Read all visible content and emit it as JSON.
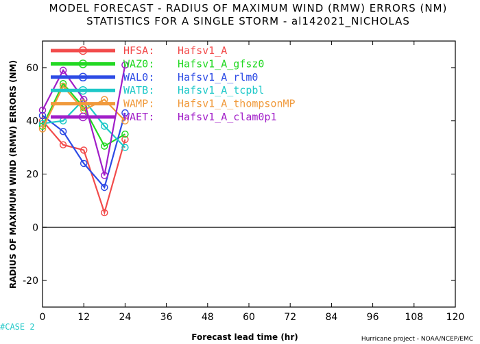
{
  "chart_data": {
    "type": "line",
    "title": "MODEL FORECAST - RADIUS OF MAXIMUM WIND (RMW) ERRORS (NM)",
    "subtitle": "STATISTICS FOR A SINGLE STORM - al142021_NICHOLAS",
    "xlabel": "Forecast lead time (hr)",
    "ylabel": "RADIUS OF MAXIMUM WIND (RMW) ERRORS (NM)",
    "xlim": [
      0,
      120
    ],
    "ylim": [
      -30,
      70
    ],
    "xticks": [
      0,
      12,
      24,
      36,
      48,
      60,
      72,
      84,
      96,
      108,
      120
    ],
    "yticks": [
      -20,
      0,
      20,
      40,
      60
    ],
    "grid": false,
    "legend_position": "top-left",
    "x": [
      0,
      6,
      12,
      18,
      24
    ],
    "series": [
      {
        "code": "HFSA",
        "name": "Hafsv1_A",
        "color": "#f24b4b",
        "values": [
          40,
          31,
          29,
          5.5,
          33
        ]
      },
      {
        "code": "WAZ0",
        "name": "Hafsv1_A_gfsz0",
        "color": "#22d822",
        "values": [
          38,
          54,
          45,
          30.5,
          35
        ]
      },
      {
        "code": "WAL0",
        "name": "Hafsv1_A_rlm0",
        "color": "#2d4be5",
        "values": [
          42,
          36,
          24,
          15,
          43
        ]
      },
      {
        "code": "WATB",
        "name": "Hafsv1_A_tcpbl",
        "color": "#1ec8c8",
        "values": [
          39,
          40,
          48,
          38,
          30
        ]
      },
      {
        "code": "WAMP",
        "name": "Hafsv1_A_thompsonMP",
        "color": "#f09a3c",
        "values": [
          37,
          53,
          44,
          48,
          40
        ]
      },
      {
        "code": "WAET",
        "name": "Hafsv1_A_clam0p1",
        "color": "#a11ec8",
        "values": [
          44,
          59,
          48,
          19.5,
          61
        ]
      }
    ]
  },
  "footer": {
    "case_label": "#CASE 2",
    "credit": "Hurricane project - NOAA/NCEP/EMC"
  }
}
